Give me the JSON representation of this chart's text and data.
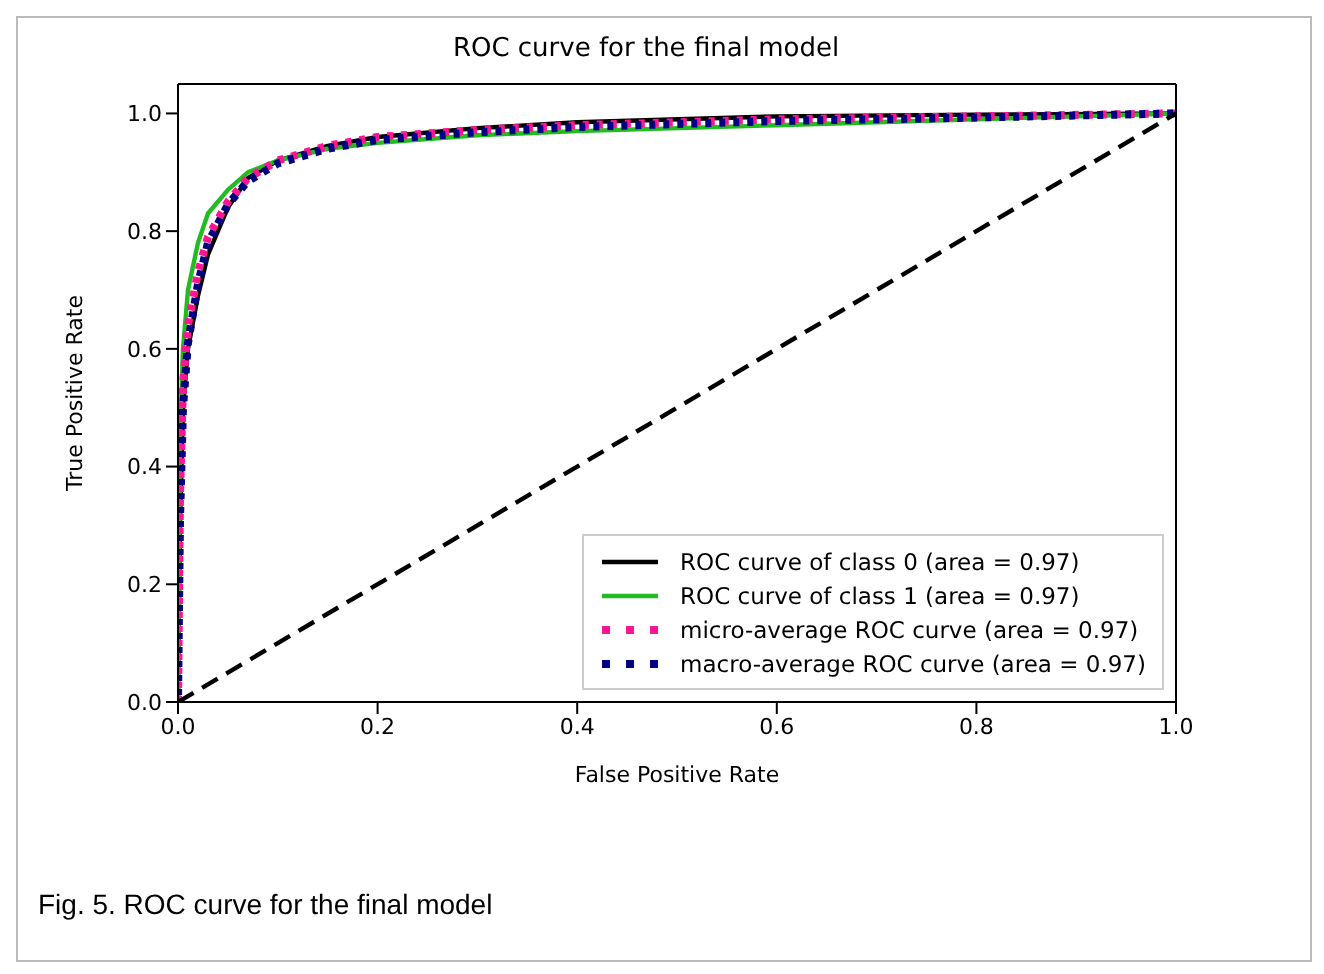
{
  "chart_data": {
    "type": "line",
    "title": "ROC curve for the final model",
    "xlabel": "False Positive Rate",
    "ylabel": "True Positive Rate",
    "xlim": [
      0,
      1
    ],
    "ylim": [
      0,
      1.05
    ],
    "xticks": [
      {
        "value": 0,
        "label": "0.0"
      },
      0.2,
      0.4,
      0.6,
      0.8,
      {
        "value": 1,
        "label": "1.0"
      }
    ],
    "yticks": [
      {
        "value": 0,
        "label": "0.0"
      },
      0.2,
      0.4,
      0.6,
      0.8,
      {
        "value": 1,
        "label": "1.0"
      }
    ],
    "grid": false,
    "legend": "bottom right",
    "marker": "none",
    "line_style": "solid",
    "series": [
      {
        "name": "ROC curve of class 0 (area = 0.97)",
        "color": "#000000",
        "x": [
          0,
          0.002,
          0.005,
          0.01,
          0.02,
          0.03,
          0.05,
          0.07,
          0.1,
          0.15,
          0.2,
          0.3,
          0.4,
          0.6,
          0.8,
          1
        ],
        "values": [
          0,
          0.3,
          0.5,
          0.6,
          0.69,
          0.76,
          0.84,
          0.89,
          0.92,
          0.945,
          0.96,
          0.975,
          0.985,
          0.995,
          0.998,
          1
        ]
      },
      {
        "name": "ROC curve of class 1 (area = 0.97)",
        "color": "#22bb22",
        "x": [
          0,
          0.002,
          0.005,
          0.01,
          0.02,
          0.03,
          0.05,
          0.07,
          0.1,
          0.15,
          0.2,
          0.3,
          0.4,
          0.6,
          0.8,
          1
        ],
        "values": [
          0,
          0.45,
          0.6,
          0.7,
          0.78,
          0.83,
          0.87,
          0.9,
          0.92,
          0.94,
          0.95,
          0.963,
          0.97,
          0.98,
          0.99,
          1
        ]
      },
      {
        "name": "micro-average ROC curve (area = 0.97)",
        "color": "#ff1493",
        "line_style": "dotted",
        "x": [
          0,
          0.002,
          0.005,
          0.01,
          0.02,
          0.03,
          0.05,
          0.07,
          0.1,
          0.15,
          0.2,
          0.3,
          0.4,
          0.6,
          0.8,
          1
        ],
        "values": [
          0,
          0.35,
          0.54,
          0.64,
          0.73,
          0.79,
          0.85,
          0.89,
          0.92,
          0.945,
          0.96,
          0.972,
          0.98,
          0.99,
          0.995,
          1
        ]
      },
      {
        "name": "macro-average ROC curve (area = 0.97)",
        "color": "#000080",
        "line_style": "dotted",
        "x": [
          0,
          0.002,
          0.005,
          0.01,
          0.02,
          0.03,
          0.05,
          0.07,
          0.1,
          0.15,
          0.2,
          0.3,
          0.4,
          0.6,
          0.8,
          1
        ],
        "values": [
          0,
          0.31,
          0.5,
          0.61,
          0.71,
          0.78,
          0.845,
          0.885,
          0.915,
          0.94,
          0.955,
          0.968,
          0.977,
          0.987,
          0.993,
          1
        ]
      },
      {
        "color": "#000000",
        "line_style": "dashed",
        "x": [
          0,
          1
        ],
        "values": [
          0,
          1
        ]
      }
    ],
    "annotations": [
      "Fig. 5. ROC curve for the final model"
    ]
  }
}
